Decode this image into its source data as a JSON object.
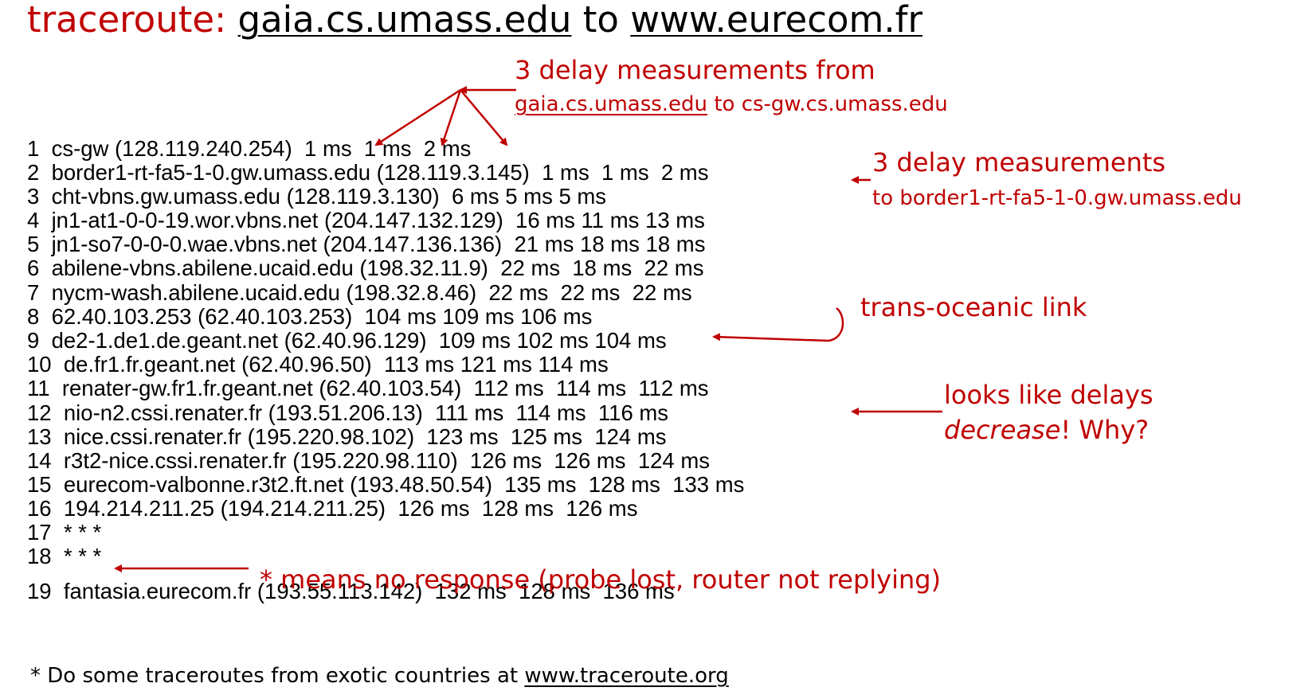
{
  "title": {
    "prefix": "traceroute:",
    "source_host": "gaia.cs.umass.edu",
    "connector": "to",
    "dest_host": "www.eurecom.fr"
  },
  "hops": [
    "1  cs-gw (128.119.240.254)  1 ms  1 ms  2 ms",
    "2  border1-rt-fa5-1-0.gw.umass.edu (128.119.3.145)  1 ms  1 ms  2 ms",
    "3  cht-vbns.gw.umass.edu (128.119.3.130)  6 ms 5 ms 5 ms",
    "4  jn1-at1-0-0-19.wor.vbns.net (204.147.132.129)  16 ms 11 ms 13 ms",
    "5  jn1-so7-0-0-0.wae.vbns.net (204.147.136.136)  21 ms 18 ms 18 ms",
    "6  abilene-vbns.abilene.ucaid.edu (198.32.11.9)  22 ms  18 ms  22 ms",
    "7  nycm-wash.abilene.ucaid.edu (198.32.8.46)  22 ms  22 ms  22 ms",
    "8  62.40.103.253 (62.40.103.253)  104 ms 109 ms 106 ms",
    "9  de2-1.de1.de.geant.net (62.40.96.129)  109 ms 102 ms 104 ms",
    "10  de.fr1.fr.geant.net (62.40.96.50)  113 ms 121 ms 114 ms",
    "11  renater-gw.fr1.fr.geant.net (62.40.103.54)  112 ms  114 ms  112 ms",
    "12  nio-n2.cssi.renater.fr (193.51.206.13)  111 ms  114 ms  116 ms",
    "13  nice.cssi.renater.fr (195.220.98.102)  123 ms  125 ms  124 ms",
    "14  r3t2-nice.cssi.renater.fr (195.220.98.110)  126 ms  126 ms  124 ms",
    "15  eurecom-valbonne.r3t2.ft.net (193.48.50.54)  135 ms  128 ms  133 ms",
    "16  194.214.211.25 (194.214.211.25)  126 ms  128 ms  126 ms",
    "17  * * *",
    "18  * * *",
    "19  fantasia.eurecom.fr (193.55.113.142)  132 ms  128 ms  136 ms"
  ],
  "annotations": {
    "first_hop_line1": "3 delay measurements from",
    "first_hop_from": "gaia.cs.umass.edu",
    "first_hop_to": "to",
    "first_hop_dest": "cs-gw.cs.umass.edu",
    "second_hop_line1": "3 delay measurements",
    "second_hop_line2": "to border1-rt-fa5-1-0.gw.umass.edu",
    "trans_oceanic": "trans-oceanic link",
    "decrease_line1": "looks like delays",
    "decrease_italic": "decrease",
    "decrease_rest": "! Why?",
    "no_response": "* means no response (probe lost, router not replying)"
  },
  "footnote": {
    "text": "* Do some traceroutes from exotic countries at",
    "link": "www.traceroute.org"
  },
  "colors": {
    "accent": "#c00000",
    "text": "#000000",
    "background": "#ffffff"
  }
}
